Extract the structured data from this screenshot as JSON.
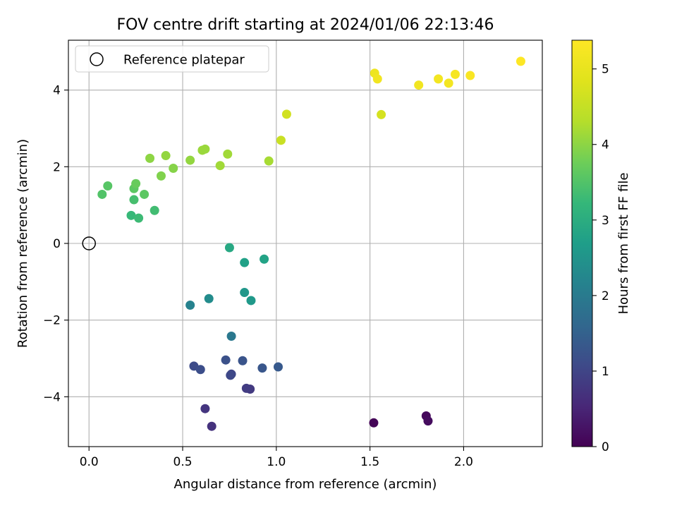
{
  "chart_data": {
    "type": "scatter",
    "title": "FOV centre drift starting at 2024/01/06 22:13:46",
    "xlabel": "Angular distance from reference (arcmin)",
    "ylabel": "Rotation from reference (arcmin)",
    "xlim": [
      -0.11,
      2.42
    ],
    "ylim": [
      -5.3,
      5.3
    ],
    "x_ticks": [
      0.0,
      0.5,
      1.0,
      1.5,
      2.0
    ],
    "x_tick_labels": [
      "0.0",
      "0.5",
      "1.0",
      "1.5",
      "2.0"
    ],
    "y_ticks": [
      -4,
      -2,
      0,
      2,
      4
    ],
    "y_tick_labels": [
      "−4",
      "−2",
      "0",
      "2",
      "4"
    ],
    "grid": true,
    "legend": {
      "placement": "top-left",
      "entries": [
        "Reference platepar"
      ]
    },
    "reference_point": {
      "x": 0.0,
      "y": 0.0
    },
    "colorbar": {
      "label": "Hours from first FF file",
      "range": [
        0,
        5.38
      ],
      "colormap": "viridis",
      "ticks": [
        0,
        1,
        2,
        3,
        4,
        5
      ],
      "tick_labels": [
        "0",
        "1",
        "2",
        "3",
        "4",
        "5"
      ]
    },
    "points": [
      {
        "x": 1.52,
        "y": -4.68,
        "c": 0.05
      },
      {
        "x": 1.8,
        "y": -4.5,
        "c": 0.1
      },
      {
        "x": 1.81,
        "y": -4.63,
        "c": 0.15
      },
      {
        "x": 0.655,
        "y": -4.77,
        "c": 0.7
      },
      {
        "x": 0.62,
        "y": -4.31,
        "c": 0.75
      },
      {
        "x": 0.86,
        "y": -3.8,
        "c": 0.8
      },
      {
        "x": 0.84,
        "y": -3.78,
        "c": 0.85
      },
      {
        "x": 0.76,
        "y": -3.41,
        "c": 1.0
      },
      {
        "x": 0.755,
        "y": -3.44,
        "c": 1.05
      },
      {
        "x": 0.56,
        "y": -3.2,
        "c": 1.1
      },
      {
        "x": 0.595,
        "y": -3.29,
        "c": 1.15
      },
      {
        "x": 0.73,
        "y": -3.04,
        "c": 1.2
      },
      {
        "x": 0.82,
        "y": -3.06,
        "c": 1.25
      },
      {
        "x": 0.925,
        "y": -3.25,
        "c": 1.3
      },
      {
        "x": 1.01,
        "y": -3.22,
        "c": 1.35
      },
      {
        "x": 0.76,
        "y": -2.42,
        "c": 1.95
      },
      {
        "x": 0.54,
        "y": -1.61,
        "c": 2.15
      },
      {
        "x": 0.64,
        "y": -1.44,
        "c": 2.35
      },
      {
        "x": 0.83,
        "y": -1.28,
        "c": 2.55
      },
      {
        "x": 0.865,
        "y": -1.49,
        "c": 2.6
      },
      {
        "x": 0.83,
        "y": -0.5,
        "c": 2.75
      },
      {
        "x": 0.935,
        "y": -0.41,
        "c": 2.8
      },
      {
        "x": 0.75,
        "y": -0.11,
        "c": 2.9
      },
      {
        "x": 0.225,
        "y": 0.73,
        "c": 3.25
      },
      {
        "x": 0.265,
        "y": 0.66,
        "c": 3.3
      },
      {
        "x": 0.35,
        "y": 0.86,
        "c": 3.35
      },
      {
        "x": 0.24,
        "y": 1.14,
        "c": 3.4
      },
      {
        "x": 0.07,
        "y": 1.28,
        "c": 3.5
      },
      {
        "x": 0.1,
        "y": 1.5,
        "c": 3.55
      },
      {
        "x": 0.24,
        "y": 1.43,
        "c": 3.6
      },
      {
        "x": 0.295,
        "y": 1.28,
        "c": 3.6
      },
      {
        "x": 0.25,
        "y": 1.56,
        "c": 3.7
      },
      {
        "x": 0.385,
        "y": 1.76,
        "c": 3.9
      },
      {
        "x": 0.45,
        "y": 1.96,
        "c": 3.95
      },
      {
        "x": 0.325,
        "y": 2.22,
        "c": 4.0
      },
      {
        "x": 0.41,
        "y": 2.29,
        "c": 4.05
      },
      {
        "x": 0.54,
        "y": 2.17,
        "c": 4.05
      },
      {
        "x": 0.605,
        "y": 2.43,
        "c": 4.1
      },
      {
        "x": 0.62,
        "y": 2.46,
        "c": 4.1
      },
      {
        "x": 0.7,
        "y": 2.03,
        "c": 4.15
      },
      {
        "x": 0.74,
        "y": 2.33,
        "c": 4.15
      },
      {
        "x": 0.96,
        "y": 2.15,
        "c": 4.2
      },
      {
        "x": 1.025,
        "y": 2.69,
        "c": 4.55
      },
      {
        "x": 1.055,
        "y": 3.37,
        "c": 4.65
      },
      {
        "x": 1.56,
        "y": 3.36,
        "c": 4.7
      },
      {
        "x": 1.525,
        "y": 4.44,
        "c": 5.1
      },
      {
        "x": 1.54,
        "y": 4.29,
        "c": 5.15
      },
      {
        "x": 1.76,
        "y": 4.13,
        "c": 5.15
      },
      {
        "x": 1.865,
        "y": 4.29,
        "c": 5.2
      },
      {
        "x": 1.92,
        "y": 4.18,
        "c": 5.2
      },
      {
        "x": 1.955,
        "y": 4.41,
        "c": 5.25
      },
      {
        "x": 2.035,
        "y": 4.38,
        "c": 5.3
      },
      {
        "x": 2.305,
        "y": 4.75,
        "c": 5.38
      }
    ]
  }
}
